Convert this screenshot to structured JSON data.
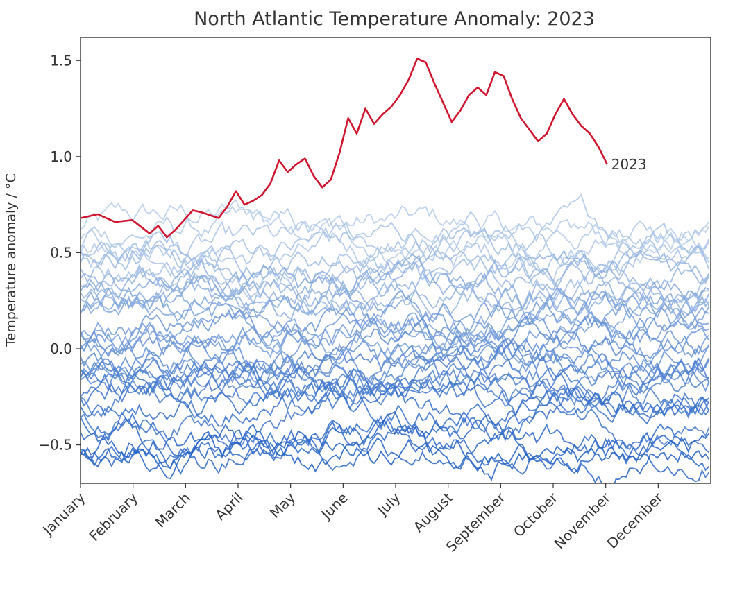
{
  "chart_data": {
    "type": "line",
    "title": "North Atlantic Temperature Anomaly: 2023",
    "xlabel": "",
    "ylabel": "Temperature anomaly / °C",
    "categories": [
      "January",
      "February",
      "March",
      "April",
      "May",
      "June",
      "July",
      "August",
      "September",
      "October",
      "November",
      "December"
    ],
    "yticks": [
      -0.5,
      0.0,
      0.5,
      1.0,
      1.5
    ],
    "ytick_labels": [
      "−0.5",
      "0.0",
      "0.5",
      "1.0",
      "1.5"
    ],
    "xlim": [
      0,
      365
    ],
    "ylim": [
      -0.7,
      1.62
    ],
    "grid": false,
    "highlight_series": {
      "name": "2023",
      "label": "2023",
      "color": "#d0162e",
      "x": [
        0,
        10,
        20,
        30,
        40,
        45,
        50,
        55,
        60,
        65,
        70,
        80,
        85,
        90,
        95,
        100,
        105,
        110,
        115,
        120,
        125,
        130,
        135,
        140,
        145,
        150,
        155,
        160,
        165,
        170,
        175,
        180,
        185,
        190,
        195,
        200,
        205,
        210,
        215,
        220,
        225,
        230,
        235,
        240,
        245,
        250,
        255,
        260,
        265,
        270,
        275,
        280,
        285,
        290,
        295,
        300,
        305
      ],
      "values": [
        0.68,
        0.7,
        0.66,
        0.67,
        0.6,
        0.64,
        0.58,
        0.62,
        0.67,
        0.72,
        0.71,
        0.68,
        0.74,
        0.82,
        0.75,
        0.77,
        0.8,
        0.86,
        0.98,
        0.92,
        0.96,
        0.99,
        0.9,
        0.84,
        0.88,
        1.02,
        1.2,
        1.12,
        1.25,
        1.17,
        1.22,
        1.26,
        1.32,
        1.4,
        1.51,
        1.49,
        1.38,
        1.28,
        1.18,
        1.24,
        1.32,
        1.36,
        1.32,
        1.44,
        1.42,
        1.3,
        1.2,
        1.14,
        1.08,
        1.12,
        1.22,
        1.3,
        1.22,
        1.16,
        1.12,
        1.05,
        0.96
      ]
    },
    "background_series_count": 40,
    "background_color_range": [
      "#b7cde9",
      "#1f5fc4"
    ]
  }
}
